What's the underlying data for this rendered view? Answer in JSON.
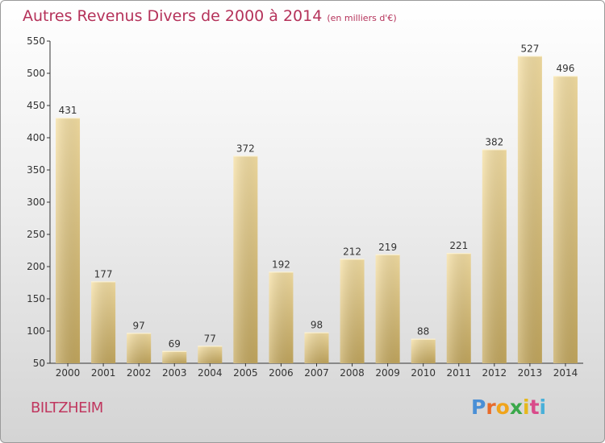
{
  "chart_data": {
    "type": "bar",
    "title": "Autres Revenus Divers de 2000 à 2014",
    "subtitle": "(en milliers d'€)",
    "categories": [
      "2000",
      "2001",
      "2002",
      "2003",
      "2004",
      "2005",
      "2006",
      "2007",
      "2008",
      "2009",
      "2010",
      "2011",
      "2012",
      "2013",
      "2014"
    ],
    "values": [
      431,
      177,
      97,
      69,
      77,
      372,
      192,
      98,
      212,
      219,
      88,
      221,
      382,
      527,
      496
    ],
    "ylim": [
      50,
      550
    ],
    "yticks": [
      50,
      100,
      150,
      200,
      250,
      300,
      350,
      400,
      450,
      500,
      550
    ],
    "grid": false,
    "data_labels": true
  },
  "footer": {
    "town": "BILTZHEIM",
    "brand_letters": [
      "P",
      "r",
      "o",
      "x",
      "i",
      "t",
      "i"
    ],
    "brand_colors": [
      "#4a8fd6",
      "#e86b2a",
      "#f0a41b",
      "#3aa84a",
      "#e6b81c",
      "#d94a8a",
      "#49b0d9"
    ]
  },
  "colors": {
    "title": "#b5325a",
    "bar_light": "#f5dd9e",
    "bar_dark": "#c9ad62",
    "axis": "#333333"
  }
}
